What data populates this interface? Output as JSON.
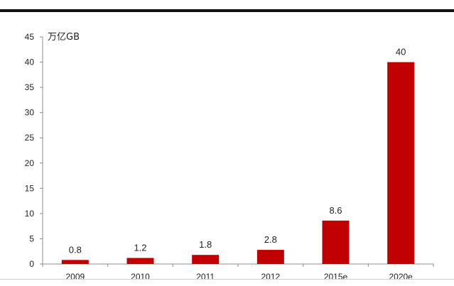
{
  "chart_data": {
    "type": "bar",
    "title": "",
    "xlabel": "",
    "ylabel": "万亿GB",
    "categories": [
      "2009",
      "2010",
      "2011",
      "2012",
      "2015e",
      "2020e"
    ],
    "values": [
      0.8,
      1.2,
      1.8,
      2.8,
      8.6,
      40
    ],
    "data_labels": [
      "0.8",
      "1.2",
      "1.8",
      "2.8",
      "8.6",
      "40"
    ],
    "ylim": [
      0,
      45
    ],
    "yticks": [
      0,
      5,
      10,
      15,
      20,
      25,
      30,
      35,
      40,
      45
    ],
    "grid": false,
    "legend": "none",
    "bar_color": "#c00000"
  }
}
